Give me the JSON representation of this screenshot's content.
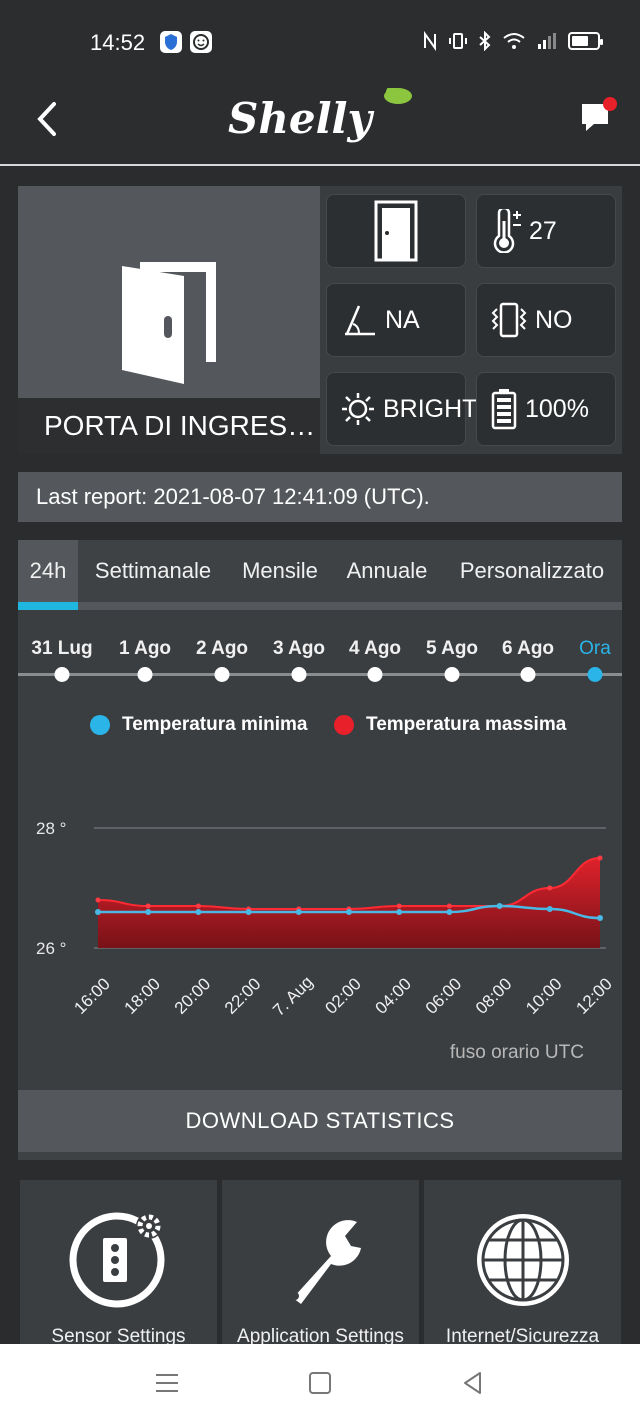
{
  "status_bar": {
    "time": "14:52"
  },
  "app": {
    "logo_text": "Shelly"
  },
  "device": {
    "name": "PORTA DI INGRES…",
    "tiles": [
      {
        "id": "door",
        "icon": "door-closed-icon",
        "value": ""
      },
      {
        "id": "temperature",
        "icon": "thermometer-icon",
        "value": "27"
      },
      {
        "id": "tilt",
        "icon": "tilt-angle-icon",
        "value": "NA"
      },
      {
        "id": "vibration",
        "icon": "vibration-icon",
        "value": "NO"
      },
      {
        "id": "lux",
        "icon": "sun-icon",
        "value": "BRIGHT"
      },
      {
        "id": "battery",
        "icon": "battery-icon",
        "value": "100%"
      }
    ]
  },
  "last_report": "Last report: 2021-08-07 12:41:09 (UTC).",
  "tabs": [
    {
      "label": "24h",
      "active": true
    },
    {
      "label": "Settimanale",
      "active": false
    },
    {
      "label": "Mensile",
      "active": false
    },
    {
      "label": "Annuale",
      "active": false
    },
    {
      "label": "Personalizzato",
      "active": false
    }
  ],
  "days": [
    "31 Lug",
    "1 Ago",
    "2 Ago",
    "3 Ago",
    "4 Ago",
    "5 Ago",
    "6 Ago",
    "Ora"
  ],
  "legend": {
    "min_label": "Temperatura minima",
    "max_label": "Temperatura massima",
    "min_color": "#2ab4e8",
    "max_color": "#e8202a"
  },
  "timezone_note": "fuso orario UTC",
  "download_label": "DOWNLOAD STATISTICS",
  "cards": [
    {
      "label": "Sensor Settings",
      "icon": "sensor-settings-icon"
    },
    {
      "label": "Application Settings",
      "icon": "wrench-icon"
    },
    {
      "label": "Internet/Sicurezza",
      "icon": "globe-icon"
    }
  ],
  "chart_data": {
    "type": "area",
    "x": [
      "16:00",
      "18:00",
      "20:00",
      "22:00",
      "7. Aug",
      "02:00",
      "04:00",
      "06:00",
      "08:00",
      "10:00",
      "12:00"
    ],
    "ytick_labels": [
      "28 °",
      "26 °"
    ],
    "ylim": [
      26,
      28
    ],
    "series": [
      {
        "name": "Temperatura massima",
        "color": "#e8202a",
        "values": [
          26.8,
          26.7,
          26.7,
          26.65,
          26.65,
          26.65,
          26.7,
          26.7,
          26.7,
          27.0,
          27.5
        ]
      },
      {
        "name": "Temperatura minima",
        "color": "#2ab4e8",
        "values": [
          26.6,
          26.6,
          26.6,
          26.6,
          26.6,
          26.6,
          26.6,
          26.6,
          26.7,
          26.65,
          26.5
        ]
      }
    ]
  }
}
